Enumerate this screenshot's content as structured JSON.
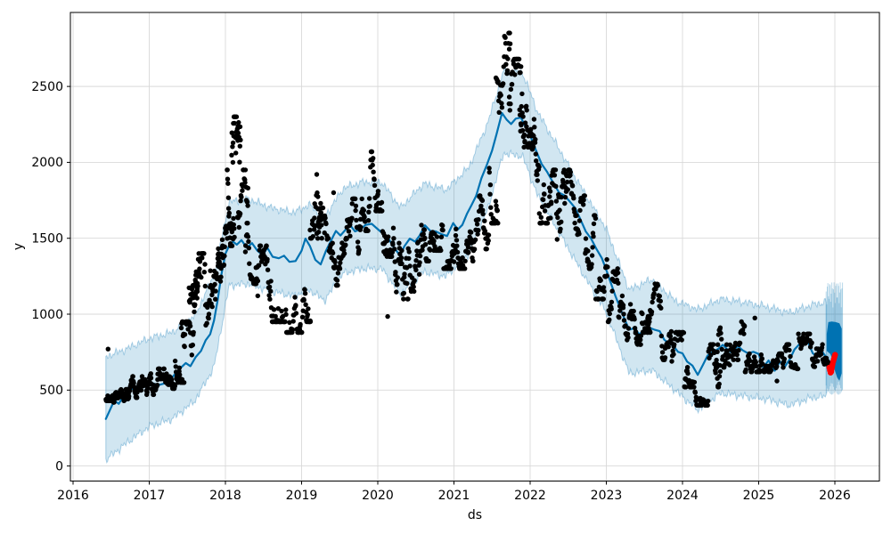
{
  "figure": {
    "background": "#ffffff"
  },
  "chart_data": {
    "type": "scatter",
    "description": "Prophet-style forecast plot: black observed points, blue forecast line with light-blue uncertainty interval, red recent points and dense blue forecast region near 2026",
    "title": "",
    "xlabel": "ds",
    "ylabel": "y",
    "xlim": [
      2015.96,
      2026.59
    ],
    "ylim": [
      -100,
      2990
    ],
    "x_ticks": [
      2016,
      2017,
      2018,
      2019,
      2020,
      2021,
      2022,
      2023,
      2024,
      2025,
      2026
    ],
    "y_ticks": [
      0,
      500,
      1000,
      1500,
      2000,
      2500
    ],
    "grid": true,
    "legend": null,
    "colors": {
      "line": "#0072B2",
      "band_fill": "rgba(0,114,178,0.18)",
      "band_edge": "rgba(0,114,178,0.30)",
      "stripe": "rgba(0,114,178,0.25)",
      "points": "#000000",
      "red_points": "#ff0000",
      "grid": "#d9d9d9",
      "spine": "#000000",
      "background": "#ffffff"
    },
    "forecast_line": [
      [
        2016.43,
        310
      ],
      [
        2016.49,
        375
      ],
      [
        2016.54,
        432
      ],
      [
        2016.6,
        410
      ],
      [
        2016.67,
        468
      ],
      [
        2016.74,
        528
      ],
      [
        2016.8,
        498
      ],
      [
        2016.87,
        545
      ],
      [
        2016.94,
        522
      ],
      [
        2017,
        556
      ],
      [
        2017.06,
        542
      ],
      [
        2017.12,
        533
      ],
      [
        2017.19,
        542
      ],
      [
        2017.27,
        562
      ],
      [
        2017.34,
        608
      ],
      [
        2017.41,
        645
      ],
      [
        2017.48,
        678
      ],
      [
        2017.54,
        658
      ],
      [
        2017.61,
        718
      ],
      [
        2017.68,
        758
      ],
      [
        2017.74,
        828
      ],
      [
        2017.8,
        868
      ],
      [
        2017.85,
        958
      ],
      [
        2017.9,
        1100
      ],
      [
        2017.95,
        1268
      ],
      [
        2018,
        1398
      ],
      [
        2018.05,
        1452
      ],
      [
        2018.1,
        1478
      ],
      [
        2018.15,
        1458
      ],
      [
        2018.21,
        1488
      ],
      [
        2018.28,
        1438
      ],
      [
        2018.35,
        1468
      ],
      [
        2018.42,
        1418
      ],
      [
        2018.49,
        1388
      ],
      [
        2018.55,
        1438
      ],
      [
        2018.62,
        1378
      ],
      [
        2018.7,
        1368
      ],
      [
        2018.77,
        1385
      ],
      [
        2018.84,
        1345
      ],
      [
        2018.92,
        1350
      ],
      [
        2019,
        1418
      ],
      [
        2019.05,
        1498
      ],
      [
        2019.11,
        1448
      ],
      [
        2019.18,
        1358
      ],
      [
        2019.25,
        1328
      ],
      [
        2019.32,
        1418
      ],
      [
        2019.39,
        1488
      ],
      [
        2019.45,
        1548
      ],
      [
        2019.51,
        1518
      ],
      [
        2019.58,
        1558
      ],
      [
        2019.64,
        1585
      ],
      [
        2019.7,
        1545
      ],
      [
        2019.77,
        1558
      ],
      [
        2019.84,
        1588
      ],
      [
        2019.92,
        1595
      ],
      [
        2020,
        1560
      ],
      [
        2020.07,
        1530
      ],
      [
        2020.14,
        1498
      ],
      [
        2020.21,
        1440
      ],
      [
        2020.29,
        1388
      ],
      [
        2020.35,
        1448
      ],
      [
        2020.42,
        1498
      ],
      [
        2020.49,
        1478
      ],
      [
        2020.55,
        1518
      ],
      [
        2020.62,
        1585
      ],
      [
        2020.69,
        1548
      ],
      [
        2020.76,
        1545
      ],
      [
        2020.83,
        1528
      ],
      [
        2020.91,
        1515
      ],
      [
        2020.99,
        1600
      ],
      [
        2021.05,
        1558
      ],
      [
        2021.11,
        1588
      ],
      [
        2021.17,
        1660
      ],
      [
        2021.23,
        1718
      ],
      [
        2021.29,
        1778
      ],
      [
        2021.36,
        1895
      ],
      [
        2021.43,
        1982
      ],
      [
        2021.5,
        2078
      ],
      [
        2021.56,
        2188
      ],
      [
        2021.63,
        2325
      ],
      [
        2021.69,
        2282
      ],
      [
        2021.75,
        2252
      ],
      [
        2021.81,
        2288
      ],
      [
        2021.88,
        2295
      ],
      [
        2021.94,
        2232
      ],
      [
        2022.01,
        2165
      ],
      [
        2022.08,
        2075
      ],
      [
        2022.15,
        1990
      ],
      [
        2022.22,
        1940
      ],
      [
        2022.3,
        1868
      ],
      [
        2022.38,
        1800
      ],
      [
        2022.45,
        1782
      ],
      [
        2022.52,
        1742
      ],
      [
        2022.59,
        1700
      ],
      [
        2022.66,
        1625
      ],
      [
        2022.73,
        1545
      ],
      [
        2022.8,
        1498
      ],
      [
        2022.87,
        1430
      ],
      [
        2022.94,
        1370
      ],
      [
        2023,
        1290
      ],
      [
        2023.06,
        1205
      ],
      [
        2023.12,
        1118
      ],
      [
        2023.18,
        1042
      ],
      [
        2023.24,
        968
      ],
      [
        2023.3,
        898
      ],
      [
        2023.37,
        908
      ],
      [
        2023.43,
        868
      ],
      [
        2023.5,
        892
      ],
      [
        2023.57,
        910
      ],
      [
        2023.63,
        898
      ],
      [
        2023.7,
        888
      ],
      [
        2023.76,
        832
      ],
      [
        2023.82,
        808
      ],
      [
        2023.88,
        792
      ],
      [
        2023.94,
        752
      ],
      [
        2024,
        742
      ],
      [
        2024.06,
        688
      ],
      [
        2024.13,
        662
      ],
      [
        2024.2,
        600
      ],
      [
        2024.27,
        668
      ],
      [
        2024.33,
        728
      ],
      [
        2024.4,
        752
      ],
      [
        2024.47,
        772
      ],
      [
        2024.53,
        798
      ],
      [
        2024.59,
        768
      ],
      [
        2024.66,
        742
      ],
      [
        2024.72,
        792
      ],
      [
        2024.79,
        762
      ],
      [
        2024.86,
        742
      ],
      [
        2024.93,
        752
      ],
      [
        2025,
        738
      ],
      [
        2025.06,
        650
      ],
      [
        2025.13,
        695
      ],
      [
        2025.21,
        628
      ],
      [
        2025.28,
        688
      ],
      [
        2025.34,
        652
      ],
      [
        2025.41,
        705
      ],
      [
        2025.47,
        768
      ],
      [
        2025.53,
        800
      ],
      [
        2025.59,
        822
      ],
      [
        2025.65,
        812
      ],
      [
        2025.71,
        742
      ],
      [
        2025.76,
        725
      ],
      [
        2025.81,
        772
      ],
      [
        2025.85,
        742
      ],
      [
        2025.89,
        712
      ]
    ],
    "uncertainty_band": [
      [
        2016.43,
        40,
        720
      ],
      [
        2016.7,
        150,
        770
      ],
      [
        2017,
        260,
        840
      ],
      [
        2017.3,
        310,
        880
      ],
      [
        2017.6,
        430,
        990
      ],
      [
        2017.85,
        650,
        1260
      ],
      [
        2018.05,
        1190,
        1740
      ],
      [
        2018.3,
        1200,
        1760
      ],
      [
        2018.6,
        1150,
        1700
      ],
      [
        2018.9,
        1120,
        1670
      ],
      [
        2019.1,
        1160,
        1720
      ],
      [
        2019.3,
        1090,
        1640
      ],
      [
        2019.55,
        1270,
        1830
      ],
      [
        2019.8,
        1300,
        1870
      ],
      [
        2020.05,
        1300,
        1870
      ],
      [
        2020.3,
        1130,
        1700
      ],
      [
        2020.6,
        1280,
        1860
      ],
      [
        2020.9,
        1250,
        1820
      ],
      [
        2021.2,
        1400,
        1970
      ],
      [
        2021.45,
        1700,
        2270
      ],
      [
        2021.65,
        2060,
        2600
      ],
      [
        2021.9,
        2040,
        2590
      ],
      [
        2022.1,
        1780,
        2330
      ],
      [
        2022.4,
        1520,
        2070
      ],
      [
        2022.7,
        1260,
        1810
      ],
      [
        2023,
        1010,
        1560
      ],
      [
        2023.3,
        610,
        1160
      ],
      [
        2023.6,
        630,
        1230
      ],
      [
        2023.9,
        500,
        1090
      ],
      [
        2024.2,
        370,
        1030
      ],
      [
        2024.5,
        480,
        1100
      ],
      [
        2024.8,
        460,
        1080
      ],
      [
        2025.1,
        440,
        1050
      ],
      [
        2025.4,
        400,
        1010
      ],
      [
        2025.7,
        450,
        1060
      ],
      [
        2025.89,
        460,
        1080
      ]
    ],
    "observed_clusters": [
      [
        2016.43,
        2016.52,
        430,
        570,
        20
      ],
      [
        2016.52,
        2016.64,
        420,
        530,
        26
      ],
      [
        2016.64,
        2016.78,
        430,
        570,
        30
      ],
      [
        2016.78,
        2016.92,
        450,
        590,
        30
      ],
      [
        2016.92,
        2017.06,
        470,
        620,
        30
      ],
      [
        2017.06,
        2017.2,
        500,
        640,
        30
      ],
      [
        2017.2,
        2017.34,
        510,
        660,
        30
      ],
      [
        2017.34,
        2017.46,
        550,
        720,
        26
      ],
      [
        2017.42,
        2017.58,
        580,
        950,
        28
      ],
      [
        2017.52,
        2017.66,
        950,
        1280,
        24
      ],
      [
        2017.58,
        2017.76,
        760,
        1400,
        32
      ],
      [
        2017.76,
        2017.92,
        900,
        1400,
        32
      ],
      [
        2017.9,
        2018.04,
        1150,
        1580,
        30
      ],
      [
        2018.02,
        2018.12,
        1450,
        1950,
        24
      ],
      [
        2018.08,
        2018.2,
        1650,
        2300,
        26
      ],
      [
        2018.16,
        2018.3,
        1450,
        1950,
        26
      ],
      [
        2018.26,
        2018.42,
        1200,
        1600,
        28
      ],
      [
        2018.42,
        2018.6,
        1050,
        1450,
        32
      ],
      [
        2018.6,
        2018.8,
        950,
        1320,
        34
      ],
      [
        2018.8,
        2019.02,
        880,
        1310,
        36
      ],
      [
        2019.02,
        2019.12,
        950,
        1280,
        20
      ],
      [
        2019.11,
        2019.27,
        1500,
        2060,
        26
      ],
      [
        2019.2,
        2019.34,
        1280,
        1700,
        22
      ],
      [
        2019.34,
        2019.48,
        1190,
        1500,
        26
      ],
      [
        2019.48,
        2019.62,
        1300,
        1620,
        26
      ],
      [
        2019.62,
        2019.76,
        1400,
        1760,
        26
      ],
      [
        2019.76,
        2019.9,
        1550,
        1900,
        26
      ],
      [
        2019.9,
        2020.06,
        1680,
        2070,
        30
      ],
      [
        2020.06,
        2020.22,
        1380,
        1850,
        28
      ],
      [
        2020.22,
        2020.4,
        1100,
        1520,
        32
      ],
      [
        2020.4,
        2020.56,
        1150,
        1500,
        28
      ],
      [
        2020.56,
        2020.72,
        1350,
        1720,
        28
      ],
      [
        2020.72,
        2020.86,
        1420,
        1750,
        26
      ],
      [
        2020.86,
        2021.02,
        1300,
        1620,
        28
      ],
      [
        2021.02,
        2021.18,
        1300,
        1570,
        28
      ],
      [
        2021.18,
        2021.32,
        1350,
        1620,
        26
      ],
      [
        2021.32,
        2021.46,
        1430,
        1780,
        26
      ],
      [
        2021.46,
        2021.58,
        1600,
        2150,
        24
      ],
      [
        2021.55,
        2021.74,
        2300,
        2852,
        32
      ],
      [
        2021.72,
        2021.88,
        2280,
        2680,
        28
      ],
      [
        2021.86,
        2022,
        2100,
        2600,
        28
      ],
      [
        2022,
        2022.12,
        1880,
        2350,
        24
      ],
      [
        2022.12,
        2022.26,
        1600,
        2050,
        26
      ],
      [
        2022.26,
        2022.42,
        1250,
        1950,
        28
      ],
      [
        2022.42,
        2022.56,
        1500,
        1950,
        26
      ],
      [
        2022.56,
        2022.72,
        1450,
        1780,
        26
      ],
      [
        2022.72,
        2022.86,
        1300,
        1650,
        26
      ],
      [
        2022.86,
        2023.02,
        1100,
        1500,
        26
      ],
      [
        2023.02,
        2023.16,
        950,
        1300,
        26
      ],
      [
        2023.16,
        2023.32,
        830,
        1120,
        26
      ],
      [
        2023.32,
        2023.46,
        800,
        1020,
        26
      ],
      [
        2023.46,
        2023.58,
        880,
        1150,
        24
      ],
      [
        2023.54,
        2023.72,
        950,
        1200,
        26
      ],
      [
        2023.72,
        2023.86,
        700,
        1000,
        24
      ],
      [
        2023.86,
        2024.02,
        620,
        880,
        26
      ],
      [
        2024.02,
        2024.16,
        520,
        750,
        26
      ],
      [
        2024.16,
        2024.34,
        400,
        600,
        30
      ],
      [
        2024.34,
        2024.5,
        520,
        800,
        28
      ],
      [
        2024.42,
        2024.62,
        650,
        950,
        28
      ],
      [
        2024.62,
        2024.82,
        700,
        950,
        30
      ],
      [
        2024.82,
        2025,
        620,
        830,
        30
      ],
      [
        2025,
        2025.16,
        620,
        780,
        26
      ],
      [
        2025.16,
        2025.34,
        560,
        740,
        26
      ],
      [
        2025.34,
        2025.52,
        640,
        800,
        26
      ],
      [
        2025.52,
        2025.7,
        700,
        870,
        26
      ],
      [
        2025.7,
        2025.84,
        640,
        800,
        24
      ],
      [
        2025.84,
        2025.93,
        600,
        710,
        16
      ]
    ],
    "observed_outliers": [
      [
        2016.46,
        770
      ],
      [
        2019.42,
        1800
      ],
      [
        2020.13,
        985
      ],
      [
        2024.95,
        975
      ],
      [
        2025.24,
        560
      ]
    ],
    "red_points": [
      [
        2025.928,
        648
      ],
      [
        2025.936,
        630
      ],
      [
        2025.944,
        615
      ],
      [
        2025.952,
        622
      ],
      [
        2025.958,
        638
      ],
      [
        2025.964,
        655
      ],
      [
        2025.97,
        670
      ],
      [
        2025.978,
        688
      ],
      [
        2025.986,
        703
      ],
      [
        2025.994,
        718
      ],
      [
        2026.002,
        732
      ]
    ],
    "forecast_block": {
      "top": [
        [
          2025.893,
          870
        ],
        [
          2025.915,
          948
        ],
        [
          2025.96,
          952
        ],
        [
          2026.01,
          948
        ],
        [
          2026.06,
          940
        ],
        [
          2026.09,
          905
        ]
      ],
      "bottom": [
        [
          2025.893,
          758
        ],
        [
          2025.94,
          738
        ],
        [
          2025.97,
          700
        ],
        [
          2026,
          630
        ],
        [
          2026.03,
          582
        ],
        [
          2026.06,
          562
        ],
        [
          2026.09,
          610
        ]
      ]
    },
    "forecast_stripes": {
      "t0": 2025.886,
      "t1": 2026.1,
      "count": 30,
      "v_top_base": 1040,
      "v_top_var": 170,
      "v_bot_base": 555,
      "v_bot_var": 85
    }
  }
}
